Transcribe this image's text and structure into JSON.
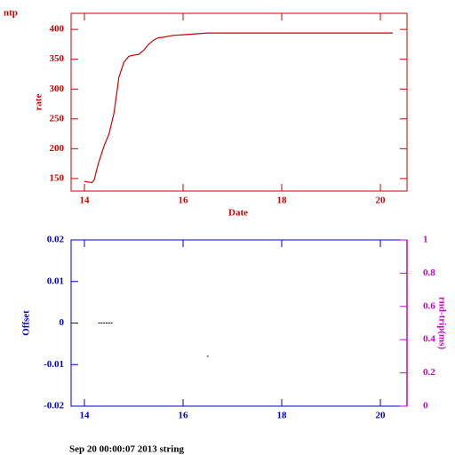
{
  "chart_data": [
    {
      "type": "line",
      "title": "ntp",
      "xlabel": "Date",
      "ylabel": "rate",
      "color": "#cc0000",
      "x": [
        14.0,
        14.1,
        14.15,
        14.2,
        14.25,
        14.3,
        14.4,
        14.5,
        14.6,
        14.7,
        14.8,
        14.9,
        15.0,
        15.1,
        15.2,
        15.3,
        15.4,
        15.5,
        15.6,
        15.8,
        16.0,
        16.5,
        17.0,
        18.0,
        19.0,
        20.0,
        20.25
      ],
      "values": [
        145,
        144,
        143,
        148,
        165,
        180,
        205,
        225,
        260,
        320,
        345,
        355,
        357,
        358,
        365,
        375,
        382,
        386,
        387,
        390,
        391,
        394,
        394,
        394,
        394,
        394,
        394
      ],
      "xlim": [
        13.73,
        20.54
      ],
      "xticks": [
        14,
        16,
        18,
        20
      ],
      "ylim": [
        129,
        427
      ],
      "yticks": [
        150,
        200,
        250,
        300,
        350,
        400
      ]
    },
    {
      "type": "scatter",
      "ylabel": "Offset",
      "y2label": "rnd-trip(ms)",
      "color": "#0000cc",
      "y2color": "#cc00cc",
      "series": [
        {
          "color": "#000000",
          "x": [
            14.3,
            14.35,
            14.4,
            14.45,
            14.5,
            14.55,
            16.5
          ],
          "values": [
            0,
            0,
            0,
            0,
            0,
            0,
            -0.008
          ]
        }
      ],
      "xlim": [
        13.73,
        20.54
      ],
      "xticks": [
        14,
        16,
        18,
        20
      ],
      "ylim": [
        -0.02,
        0.02
      ],
      "yticks": [
        -0.02,
        -0.01,
        0,
        0.01,
        0.02
      ],
      "y2lim": [
        0,
        1
      ],
      "y2ticks": [
        0,
        0.2,
        0.4,
        0.6,
        0.8,
        1
      ]
    }
  ],
  "footer": "Sep 20 00:00:07 2013 string"
}
